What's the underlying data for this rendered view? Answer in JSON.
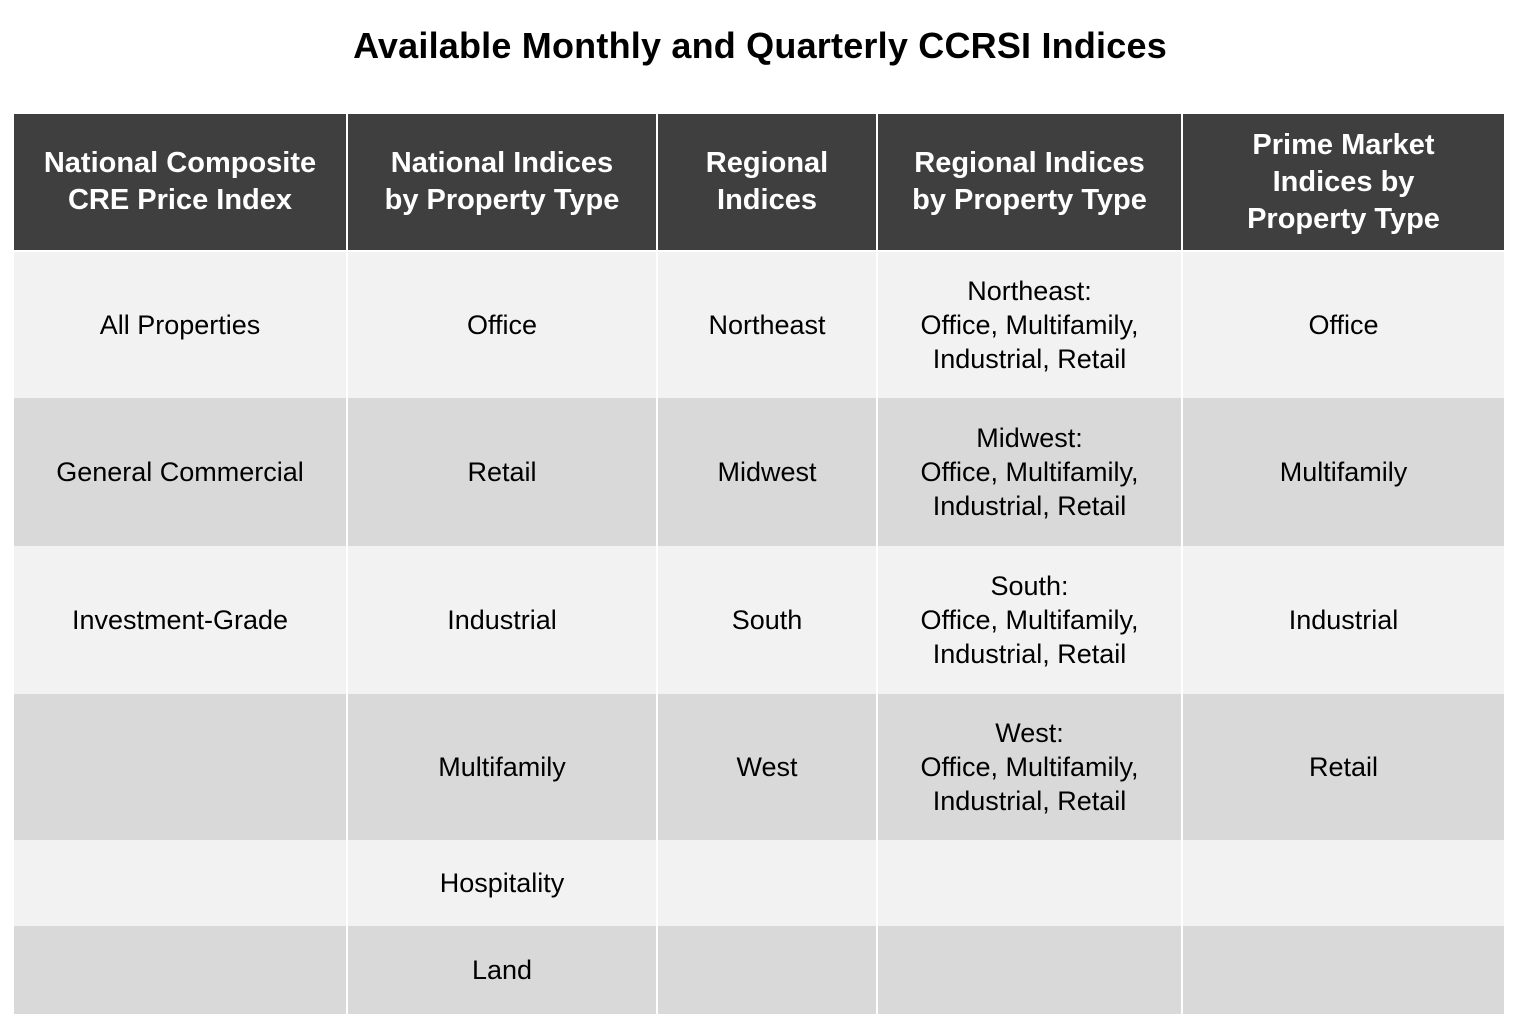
{
  "title": "Available Monthly and Quarterly CCRSI Indices",
  "headers": [
    "National Composite\nCRE Price Index",
    "National Indices\nby Property Type",
    "Regional\nIndices",
    "Regional Indices\nby Property Type",
    "Prime Market\nIndices by\nProperty Type"
  ],
  "rows": [
    [
      "All Properties",
      "Office",
      "Northeast",
      "Northeast:\nOffice, Multifamily,\nIndustrial, Retail",
      "Office"
    ],
    [
      "General Commercial",
      "Retail",
      "Midwest",
      "Midwest:\nOffice, Multifamily,\nIndustrial, Retail",
      "Multifamily"
    ],
    [
      "Investment-Grade",
      "Industrial",
      "South",
      "South:\nOffice, Multifamily,\nIndustrial, Retail",
      "Industrial"
    ],
    [
      "",
      "Multifamily",
      "West",
      "West:\nOffice, Multifamily,\nIndustrial, Retail",
      "Retail"
    ],
    [
      "",
      "Hospitality",
      "",
      "",
      ""
    ],
    [
      "",
      "Land",
      "",
      "",
      ""
    ]
  ],
  "colors": {
    "header_bg": "#3f3f3f",
    "header_text": "#ffffff",
    "row_light": "#f2f2f2",
    "row_dark": "#d9d9d9"
  }
}
